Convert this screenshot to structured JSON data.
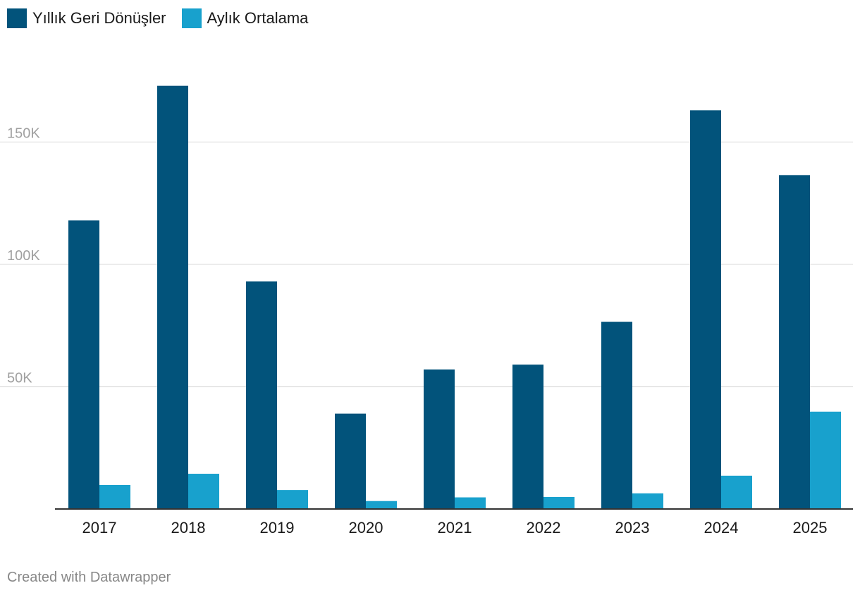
{
  "legend": [
    {
      "label": "Yıllık Geri Dönüşler",
      "color": "#02537b"
    },
    {
      "label": "Aylık Ortalama",
      "color": "#18a1cd"
    }
  ],
  "footer": "Created with Datawrapper",
  "chart_data": {
    "type": "bar",
    "categories": [
      "2017",
      "2018",
      "2019",
      "2020",
      "2021",
      "2022",
      "2023",
      "2024",
      "2025"
    ],
    "series": [
      {
        "name": "Yıllık Geri Dönüşler",
        "color": "#02537b",
        "values": [
          118000,
          173000,
          93000,
          39000,
          57000,
          59000,
          76500,
          163000,
          136500
        ]
      },
      {
        "name": "Aylık Ortalama",
        "color": "#18a1cd",
        "values": [
          9800,
          14400,
          7750,
          3250,
          4750,
          4900,
          6400,
          13600,
          39800
        ]
      }
    ],
    "y_ticks": [
      50000,
      100000,
      150000
    ],
    "y_tick_labels": [
      "50K",
      "100K",
      "150K"
    ],
    "ylim": [
      0,
      180000
    ],
    "grid": true,
    "legend_position": "top-left"
  }
}
